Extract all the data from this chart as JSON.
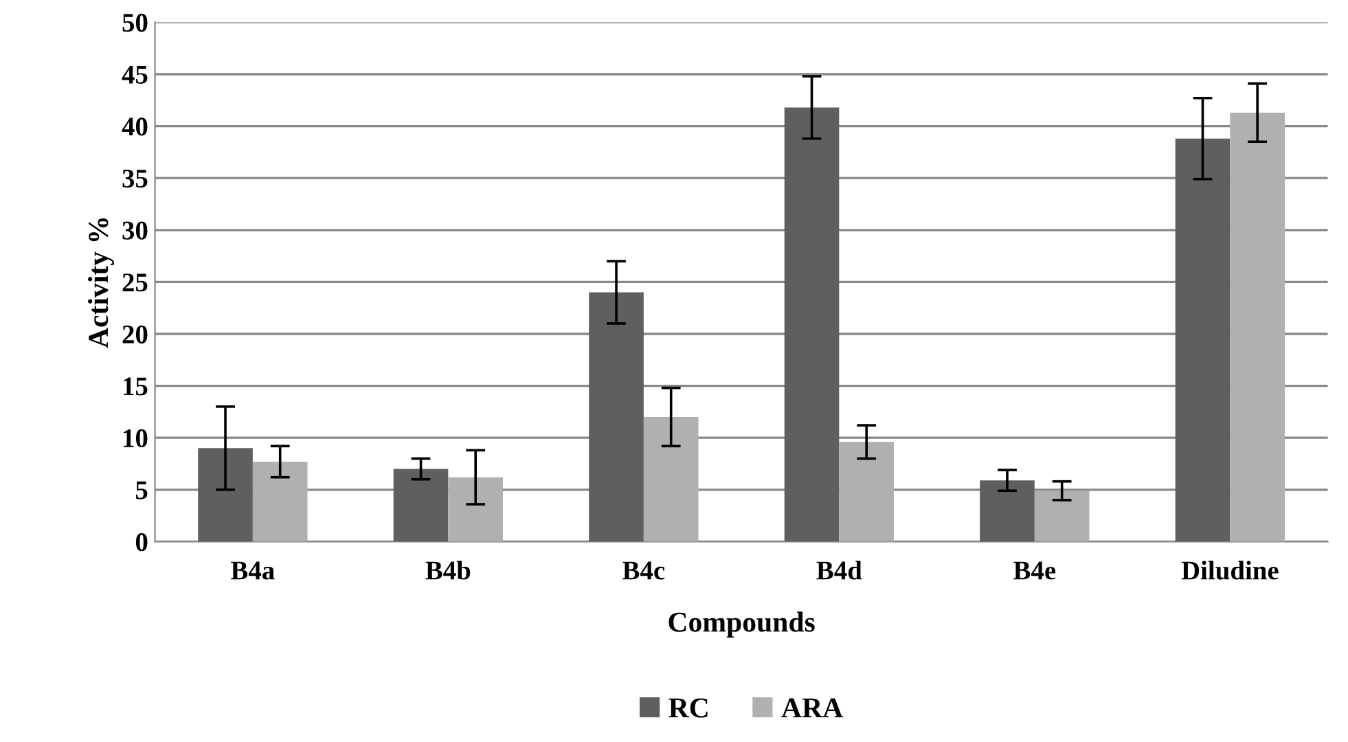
{
  "chart_data": {
    "type": "bar",
    "xlabel": "Compounds",
    "ylabel": "Activity %",
    "categories": [
      "B4a",
      "B4b",
      "B4c",
      "B4d",
      "B4e",
      "Diludine"
    ],
    "series": [
      {
        "name": "RC",
        "color": "#5f5f5f",
        "values": [
          9,
          7,
          24,
          41.8,
          5.9,
          38.8
        ],
        "errors": [
          4,
          1,
          3,
          3,
          1,
          3.9
        ]
      },
      {
        "name": "ARA",
        "color": "#b0b0b0",
        "values": [
          7.7,
          6.2,
          12,
          9.6,
          4.9,
          41.3
        ],
        "errors": [
          1.5,
          2.6,
          2.8,
          1.6,
          0.9,
          2.8
        ]
      }
    ],
    "ylim": [
      0,
      50
    ],
    "yticks": [
      0,
      5,
      10,
      15,
      20,
      25,
      30,
      35,
      40,
      45,
      50
    ],
    "grid": "y",
    "legend": "bottom"
  }
}
